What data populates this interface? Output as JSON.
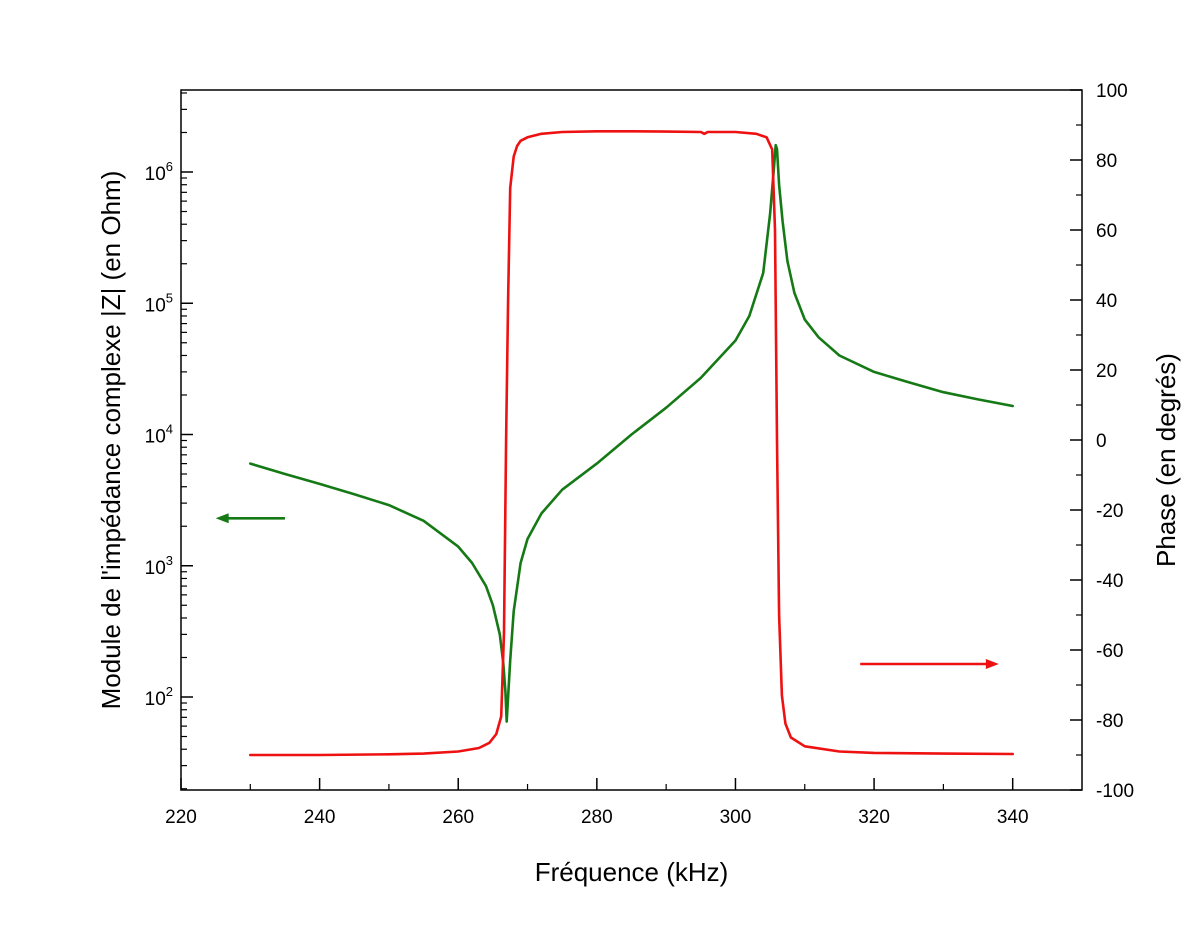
{
  "chart_data": {
    "type": "line",
    "title": "",
    "xlabel": "Fréquence (kHz)",
    "ylabel_left": "Module de l'impédance complexe |Z| (en Ohm)",
    "ylabel_right": "Phase (en degrés)",
    "xlim": [
      220,
      350
    ],
    "ylim_left": [
      20,
      4000000
    ],
    "ylim_left_scale": "log",
    "ylim_right": [
      -100,
      100
    ],
    "grid": false,
    "legend": "none",
    "x_ticks": [
      "220",
      "240",
      "260",
      "280",
      "300",
      "320",
      "340"
    ],
    "x_tick_values": [
      220,
      240,
      260,
      280,
      300,
      320,
      340
    ],
    "y_left_ticks": [
      {
        "base": "10",
        "exp": "2",
        "value": 100
      },
      {
        "base": "10",
        "exp": "3",
        "value": 1000
      },
      {
        "base": "10",
        "exp": "4",
        "value": 10000
      },
      {
        "base": "10",
        "exp": "5",
        "value": 100000
      },
      {
        "base": "10",
        "exp": "6",
        "value": 1000000
      }
    ],
    "y_right_ticks": [
      "100",
      "80",
      "60",
      "40",
      "20",
      "0",
      "-20",
      "-40",
      "-60",
      "-80",
      "-100"
    ],
    "y_right_tick_values": [
      100,
      80,
      60,
      40,
      20,
      0,
      -20,
      -40,
      -60,
      -80,
      -100
    ],
    "series": [
      {
        "axis": "left",
        "color": "#157a15",
        "x": [
          230,
          235,
          240,
          245,
          250,
          255,
          260,
          262,
          264,
          265,
          266,
          266.5,
          266.8,
          267,
          267.2,
          267.5,
          268,
          269,
          270,
          272,
          275,
          280,
          285,
          290,
          295,
          300,
          302,
          304,
          305,
          305.5,
          305.8,
          306,
          306.3,
          306.8,
          307.5,
          308.5,
          310,
          312,
          315,
          320,
          325,
          330,
          335,
          340
        ],
        "values": [
          6000,
          5000,
          4200,
          3500,
          2900,
          2200,
          1400,
          1050,
          700,
          500,
          300,
          180,
          110,
          65,
          100,
          190,
          450,
          1050,
          1600,
          2500,
          3800,
          6000,
          10000,
          16000,
          27000,
          52000,
          80000,
          170000,
          480000,
          1000000,
          1600000,
          1500000,
          800000,
          420000,
          210000,
          120000,
          75000,
          55000,
          40000,
          30000,
          25000,
          21000,
          18500,
          16500
        ]
      },
      {
        "axis": "right",
        "color": "#ee1111",
        "x": [
          230,
          240,
          250,
          255,
          260,
          263,
          264.5,
          265.5,
          266.2,
          266.6,
          266.9,
          267.2,
          267.5,
          268,
          268.5,
          269,
          270,
          272,
          275,
          280,
          285,
          290,
          295,
          295.5,
          296,
          300,
          303,
          304.5,
          305.3,
          305.7,
          306,
          306.3,
          306.7,
          307.2,
          308,
          310,
          315,
          320,
          330,
          340
        ],
        "values": [
          -90,
          -90,
          -89.8,
          -89.6,
          -89,
          -88,
          -86.5,
          -84,
          -79,
          -55,
          0,
          40,
          72,
          81,
          84,
          85.5,
          86.5,
          87.5,
          88,
          88.2,
          88.2,
          88.1,
          88,
          87.5,
          88,
          88,
          87.5,
          86.5,
          83,
          60,
          0,
          -50,
          -73,
          -81,
          -85,
          -87.5,
          -89,
          -89.4,
          -89.6,
          -89.7
        ]
      }
    ],
    "annotations": [
      {
        "type": "arrow",
        "direction": "left",
        "color": "#157a15",
        "x_from": 235,
        "x_to": 225,
        "y_axis": "left",
        "y": 2300
      },
      {
        "type": "arrow",
        "direction": "right",
        "color": "#ee1111",
        "x_from": 318,
        "x_to": 338,
        "y_axis": "right",
        "y": -64
      }
    ]
  }
}
